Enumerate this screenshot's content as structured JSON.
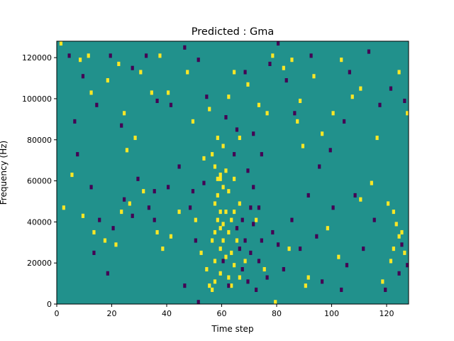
{
  "chart_data": {
    "type": "heatmap",
    "title": "Predicted : Gma",
    "xlabel": "Time step",
    "ylabel": "Frequency (Hz)",
    "xlim": [
      0,
      128
    ],
    "ylim": [
      0,
      128000
    ],
    "xticks": [
      0,
      20,
      40,
      60,
      80,
      100,
      120
    ],
    "yticks": [
      0,
      20000,
      40000,
      60000,
      80000,
      100000,
      120000
    ],
    "xtick_labels": [
      "0",
      "20",
      "40",
      "60",
      "80",
      "100",
      "120"
    ],
    "ytick_labels": [
      "0",
      "20000",
      "40000",
      "60000",
      "80000",
      "100000",
      "120000"
    ],
    "grid": false,
    "colors": {
      "background": "#21918c",
      "high": "#fde725",
      "low": "#440154"
    },
    "values_legend": {
      "background": 0,
      "high": 1,
      "low": -1
    },
    "high_cells": [
      [
        1,
        126000
      ],
      [
        8,
        118000
      ],
      [
        11,
        120000
      ],
      [
        12,
        102000
      ],
      [
        18,
        108000
      ],
      [
        22,
        116000
      ],
      [
        24,
        92000
      ],
      [
        25,
        74000
      ],
      [
        28,
        80000
      ],
      [
        30,
        112000
      ],
      [
        34,
        102000
      ],
      [
        37,
        120000
      ],
      [
        40,
        102000
      ],
      [
        47,
        112000
      ],
      [
        49,
        88000
      ],
      [
        53,
        70000
      ],
      [
        55,
        94000
      ],
      [
        56,
        72000
      ],
      [
        57,
        66000
      ],
      [
        58,
        80000
      ],
      [
        59,
        60000
      ],
      [
        60,
        76000
      ],
      [
        62,
        100000
      ],
      [
        64,
        112000
      ],
      [
        66,
        80000
      ],
      [
        69,
        106000
      ],
      [
        73,
        96000
      ],
      [
        76,
        92000
      ],
      [
        78,
        120000
      ],
      [
        79,
        0
      ],
      [
        82,
        114000
      ],
      [
        85,
        118000
      ],
      [
        87,
        88000
      ],
      [
        88,
        98000
      ],
      [
        89,
        76000
      ],
      [
        93,
        110000
      ],
      [
        96,
        82000
      ],
      [
        100,
        92000
      ],
      [
        103,
        118000
      ],
      [
        107,
        100000
      ],
      [
        110,
        104000
      ],
      [
        114,
        58000
      ],
      [
        116,
        80000
      ],
      [
        120,
        48000
      ],
      [
        122,
        44000
      ],
      [
        124,
        112000
      ],
      [
        125,
        34000
      ],
      [
        127,
        92000
      ],
      [
        2,
        46000
      ],
      [
        5,
        62000
      ],
      [
        9,
        42000
      ],
      [
        13,
        34000
      ],
      [
        17,
        30000
      ],
      [
        21,
        28000
      ],
      [
        23,
        44000
      ],
      [
        26,
        48000
      ],
      [
        31,
        54000
      ],
      [
        36,
        34000
      ],
      [
        38,
        26000
      ],
      [
        41,
        32000
      ],
      [
        44,
        44000
      ],
      [
        50,
        40000
      ],
      [
        52,
        24000
      ],
      [
        54,
        16000
      ],
      [
        55,
        8000
      ],
      [
        56,
        6000
      ],
      [
        56,
        30000
      ],
      [
        57,
        20000
      ],
      [
        57,
        34000
      ],
      [
        57,
        48000
      ],
      [
        58,
        40000
      ],
      [
        58,
        52000
      ],
      [
        59,
        14000
      ],
      [
        59,
        26000
      ],
      [
        59,
        36000
      ],
      [
        59,
        44000
      ],
      [
        59,
        62000
      ],
      [
        60,
        30000
      ],
      [
        60,
        38000
      ],
      [
        60,
        56000
      ],
      [
        61,
        22000
      ],
      [
        61,
        64000
      ],
      [
        62,
        34000
      ],
      [
        62,
        54000
      ],
      [
        63,
        8000
      ],
      [
        63,
        24000
      ],
      [
        63,
        40000
      ],
      [
        64,
        18000
      ],
      [
        64,
        44000
      ],
      [
        64,
        60000
      ],
      [
        65,
        30000
      ],
      [
        66,
        12000
      ],
      [
        66,
        48000
      ],
      [
        68,
        20000
      ],
      [
        72,
        40000
      ],
      [
        75,
        16000
      ],
      [
        84,
        26000
      ],
      [
        90,
        8000
      ],
      [
        91,
        12000
      ],
      [
        98,
        36000
      ],
      [
        102,
        22000
      ],
      [
        110,
        50000
      ],
      [
        118,
        10000
      ],
      [
        121,
        20000
      ],
      [
        122,
        26000
      ],
      [
        123,
        38000
      ],
      [
        124,
        32000
      ],
      [
        126,
        24000
      ],
      [
        57,
        10000
      ],
      [
        58,
        60000
      ],
      [
        61,
        44000
      ],
      [
        62,
        12000
      ]
    ],
    "low_cells": [
      [
        4,
        120000
      ],
      [
        6,
        88000
      ],
      [
        9,
        110000
      ],
      [
        14,
        96000
      ],
      [
        19,
        120000
      ],
      [
        23,
        86000
      ],
      [
        27,
        114000
      ],
      [
        32,
        120000
      ],
      [
        36,
        98000
      ],
      [
        41,
        96000
      ],
      [
        46,
        124000
      ],
      [
        51,
        118000
      ],
      [
        54,
        100000
      ],
      [
        61,
        90000
      ],
      [
        65,
        84000
      ],
      [
        68,
        112000
      ],
      [
        71,
        82000
      ],
      [
        74,
        72000
      ],
      [
        77,
        116000
      ],
      [
        80,
        126000
      ],
      [
        83,
        108000
      ],
      [
        86,
        92000
      ],
      [
        92,
        120000
      ],
      [
        95,
        66000
      ],
      [
        99,
        74000
      ],
      [
        104,
        88000
      ],
      [
        106,
        112000
      ],
      [
        113,
        122000
      ],
      [
        117,
        96000
      ],
      [
        121,
        104000
      ],
      [
        126,
        98000
      ],
      [
        7,
        72000
      ],
      [
        12,
        56000
      ],
      [
        15,
        40000
      ],
      [
        20,
        36000
      ],
      [
        24,
        50000
      ],
      [
        29,
        60000
      ],
      [
        33,
        46000
      ],
      [
        35,
        40000
      ],
      [
        40,
        56000
      ],
      [
        44,
        66000
      ],
      [
        48,
        46000
      ],
      [
        49,
        54000
      ],
      [
        50,
        30000
      ],
      [
        51,
        0
      ],
      [
        60,
        20000
      ],
      [
        62,
        8000
      ],
      [
        65,
        36000
      ],
      [
        66,
        26000
      ],
      [
        67,
        40000
      ],
      [
        67,
        16000
      ],
      [
        68,
        30000
      ],
      [
        69,
        10000
      ],
      [
        70,
        24000
      ],
      [
        70,
        46000
      ],
      [
        71,
        38000
      ],
      [
        72,
        6000
      ],
      [
        73,
        20000
      ],
      [
        74,
        30000
      ],
      [
        76,
        12000
      ],
      [
        78,
        34000
      ],
      [
        80,
        28000
      ],
      [
        82,
        16000
      ],
      [
        85,
        40000
      ],
      [
        88,
        26000
      ],
      [
        91,
        52000
      ],
      [
        94,
        32000
      ],
      [
        96,
        10000
      ],
      [
        100,
        46000
      ],
      [
        103,
        6000
      ],
      [
        105,
        18000
      ],
      [
        108,
        52000
      ],
      [
        111,
        26000
      ],
      [
        115,
        40000
      ],
      [
        119,
        6000
      ],
      [
        124,
        14000
      ],
      [
        125,
        28000
      ],
      [
        127,
        18000
      ],
      [
        13,
        24000
      ],
      [
        18,
        14000
      ],
      [
        27,
        42000
      ],
      [
        35,
        54000
      ],
      [
        46,
        8000
      ],
      [
        53,
        58000
      ],
      [
        64,
        72000
      ],
      [
        69,
        64000
      ],
      [
        71,
        56000
      ],
      [
        73,
        46000
      ]
    ]
  }
}
